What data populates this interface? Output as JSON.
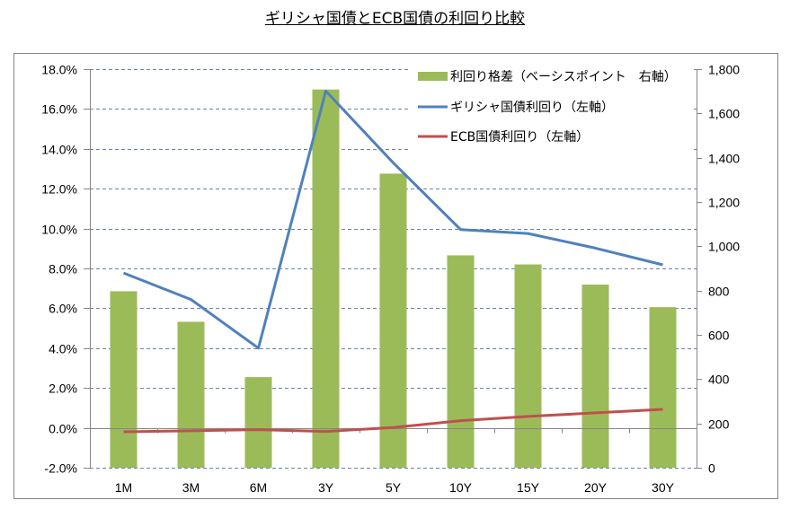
{
  "chart_data": {
    "type": "bar",
    "title": "ギリシャ国債とECB国債の利回り比較",
    "categories": [
      "1M",
      "3M",
      "6M",
      "3Y",
      "5Y",
      "10Y",
      "15Y",
      "20Y",
      "30Y"
    ],
    "series": [
      {
        "name": "利回り格差（ベーシスポイント　右軸）",
        "kind": "bar",
        "axis": "right",
        "color": "#9BBB59",
        "values": [
          797,
          659,
          409,
          1708,
          1328,
          959,
          918,
          827,
          725
        ]
      },
      {
        "name": "ギリシャ国債利回り（左軸）",
        "kind": "line",
        "axis": "left",
        "color": "#4F81BD",
        "values": [
          7.77,
          6.44,
          4.0,
          16.9,
          13.3,
          9.95,
          9.75,
          9.02,
          8.18
        ]
      },
      {
        "name": "ECB国債利回り（左軸）",
        "kind": "line",
        "axis": "left",
        "color": "#C0504D",
        "values": [
          -0.2,
          -0.15,
          -0.09,
          -0.18,
          0.02,
          0.36,
          0.57,
          0.75,
          0.93
        ]
      }
    ],
    "left_axis": {
      "label": "",
      "ylim": [
        -2,
        18
      ],
      "ticks": [
        -2,
        0,
        2,
        4,
        6,
        8,
        10,
        12,
        14,
        16,
        18
      ],
      "tick_labels": [
        "-2.0%",
        "0.0%",
        "2.0%",
        "4.0%",
        "6.0%",
        "8.0%",
        "10.0%",
        "12.0%",
        "14.0%",
        "16.0%",
        "18.0%"
      ]
    },
    "right_axis": {
      "label": "",
      "ylim": [
        0,
        1800
      ],
      "ticks": [
        0,
        200,
        400,
        600,
        800,
        1000,
        1200,
        1400,
        1600,
        1800
      ],
      "tick_labels": [
        "0",
        "200",
        "400",
        "600",
        "800",
        "1,000",
        "1,200",
        "1,400",
        "1,600",
        "1,800"
      ]
    },
    "xlabel": "",
    "grid": "horizontal dashed (left axis)",
    "legend_position": "top-right"
  }
}
